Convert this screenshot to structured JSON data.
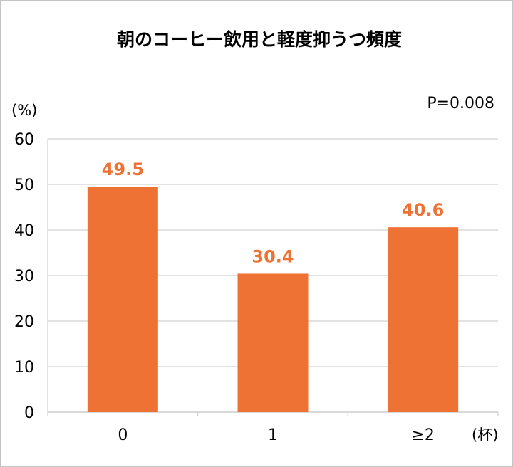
{
  "chart_data": {
    "type": "bar",
    "title": "朝のコーヒー飲用と軽度抑うつ頻度",
    "ylabel": "(%)",
    "xlabel": "(杯)",
    "annotation": "P=0.008",
    "categories": [
      "0",
      "1",
      "≥2"
    ],
    "values": [
      49.5,
      30.4,
      40.6
    ],
    "value_labels": [
      "49.5",
      "30.4",
      "40.6"
    ],
    "ylim": [
      0,
      60
    ],
    "yticks": [
      "0",
      "10",
      "20",
      "30",
      "40",
      "50",
      "60"
    ],
    "grid": true,
    "colors": {
      "bar": "#ed7233",
      "label": "#ed7233",
      "grid": "#d9d9d9",
      "text": "#000000"
    }
  }
}
